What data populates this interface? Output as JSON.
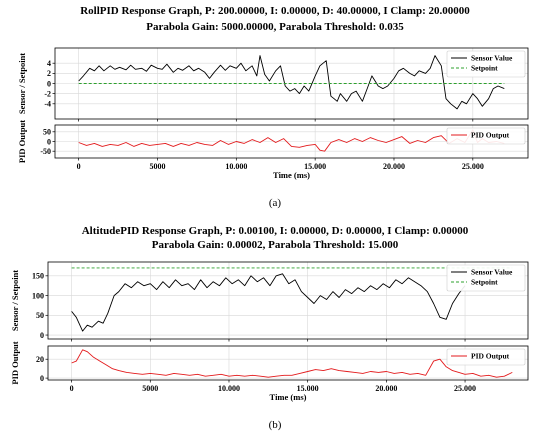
{
  "chart_data": [
    {
      "type": "line",
      "panel_caption": "(a)",
      "title_line1": "RollPID Response Graph, P: 200.00000, I: 0.00000, D: 40.00000, I Clamp: 20.00000",
      "title_line2": "Parabola Gain: 5000.00000, Parabola Threshold: 0.035",
      "xlabel": "Time (ms)",
      "xlim": [
        -1500,
        28500
      ],
      "xticks": [
        0,
        5000,
        10000,
        15000,
        20000,
        25000
      ],
      "xtick_labels": [
        "0",
        "5000",
        "10.000",
        "15.000",
        "20.000",
        "25.000"
      ],
      "top_plot": {
        "ylabel": "Sensor / Setpoint",
        "ylim": [
          -7,
          7
        ],
        "yticks": [
          -4,
          -2,
          0,
          2,
          4
        ],
        "ytick_labels": [
          "-4",
          "-2",
          "0",
          "2",
          "4"
        ],
        "grid": true,
        "legend": "top-right",
        "series": [
          {
            "name": "Sensor Value",
            "color": "#000000",
            "style": "solid",
            "x": [
              0,
              300,
              700,
              1000,
              1300,
              1600,
              2000,
              2300,
              2600,
              3000,
              3300,
              3600,
              4000,
              4300,
              4600,
              5000,
              5300,
              5600,
              6000,
              6300,
              6600,
              7000,
              7300,
              7600,
              8000,
              8300,
              8600,
              9000,
              9300,
              9600,
              10000,
              10300,
              10600,
              11000,
              11300,
              11500,
              11800,
              12100,
              12500,
              12800,
              13100,
              13400,
              13700,
              14000,
              14300,
              14600,
              15000,
              15300,
              15700,
              16000,
              16200,
              16400,
              16600,
              17000,
              17300,
              17600,
              18000,
              18300,
              18600,
              19000,
              19300,
              19600,
              20000,
              20300,
              20600,
              21000,
              21300,
              21600,
              22000,
              22300,
              22600,
              23000,
              23300,
              23600,
              24000,
              24300,
              24600,
              25000,
              25300,
              25600,
              26000,
              26300,
              26600,
              27000
            ],
            "y": [
              0.5,
              1.5,
              3,
              2.5,
              3.5,
              2.5,
              3.5,
              2.8,
              3.2,
              2.7,
              3.6,
              2.8,
              3,
              2.4,
              3.6,
              3,
              2.8,
              3.8,
              2.2,
              3,
              2.6,
              3.5,
              2.5,
              3,
              2.2,
              1,
              2.2,
              3.6,
              2.6,
              3.5,
              3,
              4,
              2.5,
              3.5,
              1.5,
              5.5,
              1.8,
              0.5,
              2.5,
              3.5,
              -0.5,
              -1.5,
              -1,
              -2,
              -0.5,
              -1.5,
              1.5,
              3.5,
              4.5,
              -2.5,
              -3,
              -3.5,
              -2,
              -3.5,
              -2,
              -1.5,
              -3.5,
              -1,
              1.5,
              -0.5,
              -1,
              -0.5,
              1,
              2.5,
              3,
              2,
              1.5,
              2.5,
              2,
              3,
              5.5,
              3.5,
              -3,
              -4,
              -5,
              -3.5,
              -4,
              -2,
              -3,
              -4.5,
              -3,
              -1,
              -0.5,
              -1
            ]
          },
          {
            "name": "Setpoint",
            "color": "#2ca02c",
            "style": "dashed",
            "x": [
              0,
              27000
            ],
            "y": [
              0,
              0
            ]
          }
        ]
      },
      "bottom_plot": {
        "ylabel": "PID Output",
        "ylim": [
          -85,
          85
        ],
        "yticks": [
          -50,
          0,
          50
        ],
        "ytick_labels": [
          "-50",
          "0",
          "50"
        ],
        "grid": true,
        "legend": "top-right",
        "series": [
          {
            "name": "PID Output",
            "color": "#e31a1c",
            "style": "solid",
            "x": [
              0,
              500,
              1000,
              1500,
              2000,
              2500,
              3000,
              3500,
              4000,
              4500,
              5000,
              5500,
              6000,
              6500,
              7000,
              7500,
              8000,
              8500,
              9000,
              9500,
              10000,
              10500,
              11000,
              11500,
              12000,
              12500,
              13000,
              13500,
              14000,
              14500,
              15000,
              15300,
              15600,
              16000,
              16500,
              17000,
              17500,
              18000,
              18500,
              19000,
              19500,
              20000,
              20500,
              21000,
              21500,
              22000,
              22500,
              23000,
              23500,
              24000,
              24500,
              25000,
              25300,
              25600,
              26000,
              26500,
              27000
            ],
            "y": [
              -5,
              -20,
              -10,
              -25,
              -15,
              -20,
              -5,
              -25,
              -10,
              -20,
              -15,
              -10,
              -25,
              -10,
              -20,
              -5,
              -15,
              -20,
              5,
              -15,
              0,
              -10,
              10,
              -5,
              20,
              -5,
              15,
              -25,
              -30,
              -20,
              -15,
              -45,
              -50,
              -5,
              10,
              -5,
              15,
              0,
              20,
              5,
              -5,
              10,
              25,
              -10,
              5,
              -5,
              20,
              30,
              -10,
              15,
              -5,
              60,
              -5,
              15,
              -5,
              0,
              -10
            ]
          }
        ]
      }
    },
    {
      "type": "line",
      "panel_caption": "(b)",
      "title_line1": "AltitudePID Response Graph, P: 0.00100, I: 0.00000, D: 0.00000, I Clamp: 0.00000",
      "title_line2": "Parabola Gain: 0.00002, Parabola Threshold: 15.000",
      "xlabel": "Time (ms)",
      "xlim": [
        -1500,
        29000
      ],
      "xticks": [
        0,
        5000,
        10000,
        15000,
        20000,
        25000
      ],
      "xtick_labels": [
        "0",
        "5000",
        "10.000",
        "15.000",
        "20.000",
        "25.000"
      ],
      "top_plot": {
        "ylabel": "Sensor / Setpoint",
        "ylim": [
          -10,
          185
        ],
        "yticks": [
          0,
          50,
          100,
          150
        ],
        "ytick_labels": [
          "0",
          "50",
          "100",
          "150"
        ],
        "grid": true,
        "legend": "top-right",
        "series": [
          {
            "name": "Sensor Value",
            "color": "#000000",
            "style": "solid",
            "x": [
              0,
              300,
              700,
              1000,
              1300,
              1700,
              2000,
              2300,
              2700,
              3000,
              3400,
              3800,
              4200,
              4600,
              5000,
              5400,
              5800,
              6200,
              6600,
              7000,
              7400,
              7800,
              8200,
              8600,
              9000,
              9400,
              9800,
              10200,
              10600,
              11000,
              11400,
              11800,
              12200,
              12600,
              13000,
              13400,
              13800,
              14200,
              14600,
              15000,
              15400,
              15800,
              16200,
              16600,
              17000,
              17400,
              17800,
              18200,
              18600,
              19000,
              19400,
              19800,
              20200,
              20600,
              21000,
              21400,
              21800,
              22200,
              22600,
              23000,
              23400,
              23800,
              24200,
              24600,
              25000
            ],
            "y": [
              60,
              45,
              10,
              25,
              20,
              35,
              30,
              55,
              100,
              110,
              130,
              120,
              135,
              125,
              130,
              115,
              135,
              120,
              140,
              125,
              130,
              115,
              140,
              120,
              135,
              125,
              145,
              130,
              140,
              125,
              150,
              135,
              145,
              125,
              150,
              155,
              130,
              140,
              110,
              95,
              80,
              100,
              90,
              110,
              95,
              115,
              105,
              120,
              110,
              125,
              115,
              130,
              120,
              140,
              130,
              145,
              135,
              125,
              110,
              80,
              45,
              40,
              80,
              105,
              125
            ]
          },
          {
            "name": "Setpoint",
            "color": "#2ca02c",
            "style": "dashed",
            "x": [
              0,
              28000
            ],
            "y": [
              170,
              170
            ]
          }
        ]
      },
      "bottom_plot": {
        "ylabel": "PID Output",
        "ylim": [
          -2,
          34
        ],
        "yticks": [
          0,
          20
        ],
        "ytick_labels": [
          "0",
          "20"
        ],
        "grid": true,
        "legend": "top-right",
        "series": [
          {
            "name": "PID Output",
            "color": "#e31a1c",
            "style": "solid",
            "x": [
              0,
              300,
              700,
              1000,
              1400,
              1800,
              2200,
              2600,
              3000,
              3500,
              4000,
              4500,
              5000,
              5500,
              6000,
              6500,
              7000,
              7500,
              8000,
              8500,
              9000,
              9500,
              10000,
              10500,
              11000,
              11500,
              12000,
              12500,
              13000,
              13500,
              14000,
              14500,
              15000,
              15500,
              16000,
              16500,
              17000,
              17500,
              18000,
              18500,
              19000,
              19500,
              20000,
              20500,
              21000,
              21500,
              22000,
              22500,
              23000,
              23400,
              23800,
              24200,
              24600,
              25000,
              25500,
              26000,
              26500,
              27000,
              27500,
              28000
            ],
            "y": [
              16,
              18,
              30,
              28,
              22,
              18,
              14,
              10,
              8,
              6,
              5,
              4,
              5,
              4,
              3,
              5,
              4,
              3,
              4,
              2,
              3,
              4,
              2,
              3,
              2,
              3,
              2,
              1,
              2,
              3,
              3,
              5,
              7,
              9,
              8,
              10,
              8,
              7,
              6,
              5,
              7,
              6,
              7,
              5,
              6,
              4,
              5,
              3,
              18,
              20,
              12,
              8,
              6,
              4,
              5,
              2,
              3,
              1,
              2,
              6
            ]
          }
        ]
      }
    }
  ]
}
